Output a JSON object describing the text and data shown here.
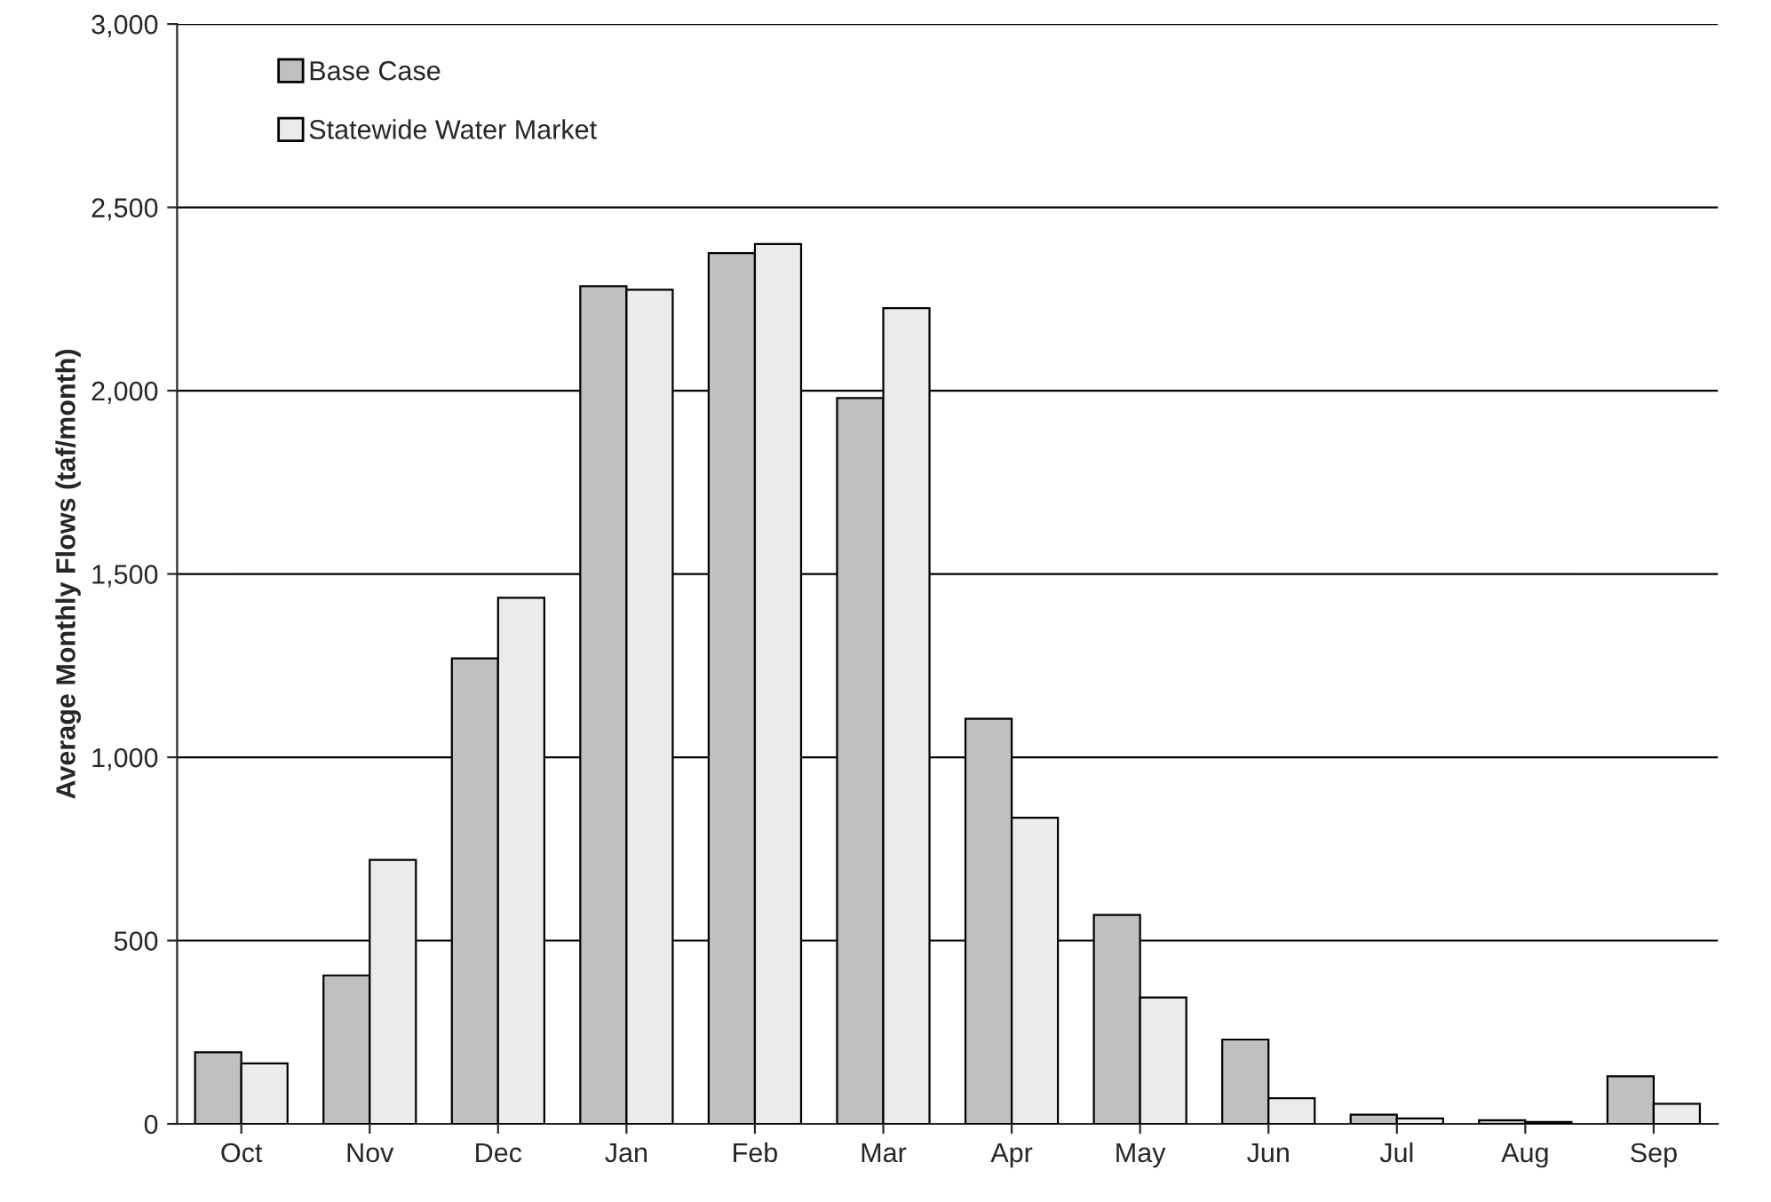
{
  "chart_data": {
    "type": "bar",
    "ylabel": "Average Monthly Flows (taf/month)",
    "categories": [
      "Oct",
      "Nov",
      "Dec",
      "Jan",
      "Feb",
      "Mar",
      "Apr",
      "May",
      "Jun",
      "Jul",
      "Aug",
      "Sep"
    ],
    "series": [
      {
        "name": "Base Case",
        "color": "#c0c0c0",
        "values": [
          195,
          405,
          1270,
          2285,
          2375,
          1980,
          1105,
          570,
          230,
          25,
          10,
          130
        ]
      },
      {
        "name": "Statewide Water Market",
        "color": "#ebebeb",
        "values": [
          165,
          720,
          1435,
          2275,
          2400,
          2225,
          835,
          345,
          70,
          15,
          5,
          55
        ]
      }
    ],
    "ylim": [
      0,
      3000
    ],
    "yticks": [
      {
        "value": 0,
        "label": "0"
      },
      {
        "value": 500,
        "label": "500"
      },
      {
        "value": 1000,
        "label": "1,000"
      },
      {
        "value": 1500,
        "label": "1,500"
      },
      {
        "value": 2000,
        "label": "2,000"
      },
      {
        "value": 2500,
        "label": "2,500"
      },
      {
        "value": 3000,
        "label": "3,000"
      }
    ],
    "grid": "y",
    "legend": "top left"
  }
}
